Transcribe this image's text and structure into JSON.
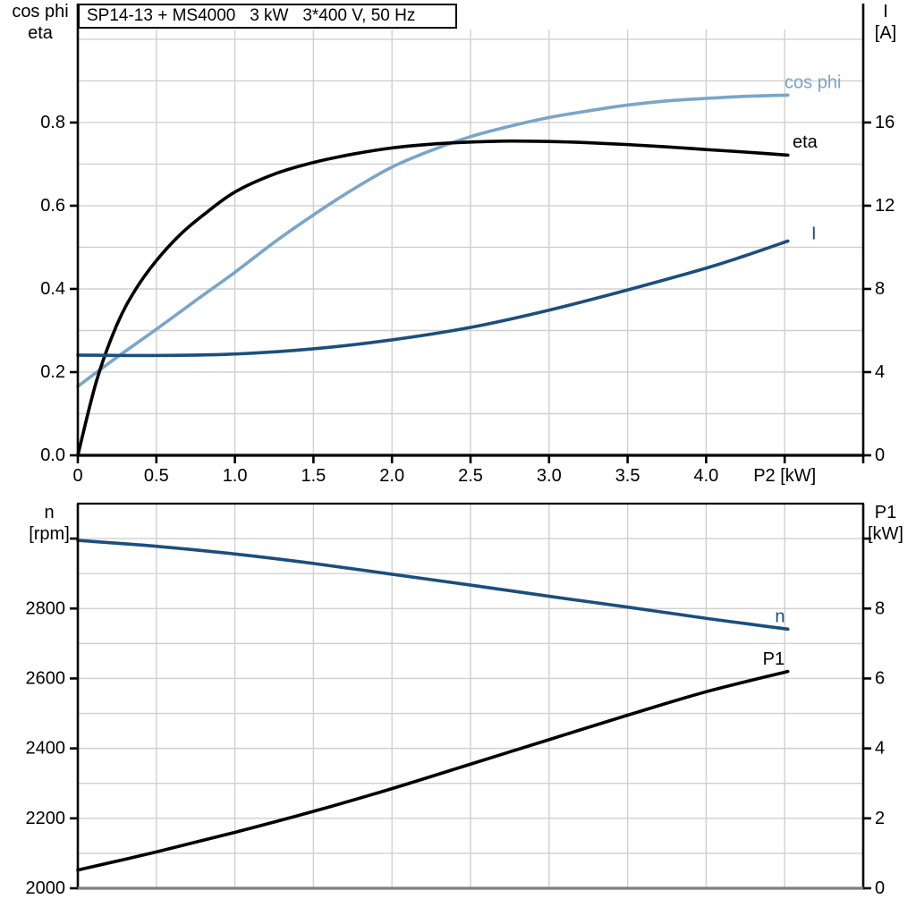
{
  "title_box": {
    "text": "SP14-13 + MS4000   3 kW   3*400 V, 50 Hz"
  },
  "axis_corner_labels": {
    "top_left": [
      "cos phi",
      "eta"
    ],
    "top_right": [
      "I",
      "[A]"
    ],
    "bottom_left": [
      "n",
      "[rpm]"
    ],
    "bottom_right": [
      "P1",
      "[kW]"
    ]
  },
  "colors": {
    "cos_phi": "#7aa5c9",
    "eta": "#000000",
    "current": "#1b4e7e",
    "speed": "#1b4e7e",
    "p1": "#000000",
    "grid": "#d0d0d0",
    "axis": "#000000",
    "bottom_axis_gray": "#7f7f7f",
    "background": "#ffffff"
  },
  "chart_data": [
    {
      "type": "line",
      "title": "SP14-13 + MS4000   3 kW   3*400 V, 50 Hz",
      "xlabel": "P2 [kW]",
      "x_axis": {
        "range": [
          0,
          5.0
        ],
        "label": "P2 [kW]",
        "label_tick_v": 4.5,
        "grid_step": 0.5,
        "ticks": [
          {
            "v": 0,
            "t": "0"
          },
          {
            "v": 0.5,
            "t": "0.5"
          },
          {
            "v": 1,
            "t": "1.0"
          },
          {
            "v": 1.5,
            "t": "1.5"
          },
          {
            "v": 2,
            "t": "2.0"
          },
          {
            "v": 2.5,
            "t": "2.5"
          },
          {
            "v": 3,
            "t": "3.0"
          },
          {
            "v": 3.5,
            "t": "3.5"
          },
          {
            "v": 4,
            "t": "4.0"
          },
          {
            "v": 4.5,
            "t": ""
          },
          {
            "v": 5,
            "t": ""
          }
        ]
      },
      "y_left": {
        "label": "cos phi / eta",
        "range": [
          0,
          1.0236
        ],
        "grid_step": 0.1,
        "ticks": [
          {
            "v": 0,
            "t": "0.0"
          },
          {
            "v": 0.2,
            "t": "0.2"
          },
          {
            "v": 0.4,
            "t": "0.4"
          },
          {
            "v": 0.6,
            "t": "0.6"
          },
          {
            "v": 0.8,
            "t": "0.8"
          }
        ]
      },
      "y_right": {
        "label": "I [A]",
        "range": [
          0,
          20.47
        ],
        "ticks": [
          {
            "v": 0,
            "t": "0"
          },
          {
            "v": 4,
            "t": "4"
          },
          {
            "v": 8,
            "t": "8"
          },
          {
            "v": 12,
            "t": "12"
          },
          {
            "v": 16,
            "t": "16"
          }
        ]
      },
      "series": [
        {
          "name": "cos phi",
          "axis": "left",
          "color": "#7aa5c9",
          "label": {
            "text": "cos phi",
            "v": 4.86,
            "y": 0.896,
            "anchor": "end"
          },
          "points": [
            [
              0,
              0.166
            ],
            [
              0.25,
              0.236
            ],
            [
              0.5,
              0.303
            ],
            [
              0.75,
              0.372
            ],
            [
              1.0,
              0.44
            ],
            [
              1.25,
              0.512
            ],
            [
              1.5,
              0.578
            ],
            [
              1.75,
              0.639
            ],
            [
              2.0,
              0.693
            ],
            [
              2.25,
              0.733
            ],
            [
              2.5,
              0.766
            ],
            [
              2.75,
              0.791
            ],
            [
              3.0,
              0.812
            ],
            [
              3.25,
              0.828
            ],
            [
              3.5,
              0.842
            ],
            [
              3.75,
              0.852
            ],
            [
              4.0,
              0.858
            ],
            [
              4.25,
              0.863
            ],
            [
              4.52,
              0.866
            ]
          ]
        },
        {
          "name": "eta",
          "axis": "left",
          "color": "#000000",
          "label": {
            "text": "eta",
            "v": 4.55,
            "y": 0.753,
            "anchor": "start"
          },
          "points": [
            [
              0,
              0
            ],
            [
              0.12,
              0.18
            ],
            [
              0.25,
              0.315
            ],
            [
              0.37,
              0.4
            ],
            [
              0.5,
              0.468
            ],
            [
              0.65,
              0.53
            ],
            [
              0.8,
              0.578
            ],
            [
              1.0,
              0.633
            ],
            [
              1.25,
              0.676
            ],
            [
              1.5,
              0.704
            ],
            [
              1.75,
              0.724
            ],
            [
              2.0,
              0.739
            ],
            [
              2.25,
              0.748
            ],
            [
              2.5,
              0.753
            ],
            [
              2.75,
              0.7555
            ],
            [
              3.0,
              0.7545
            ],
            [
              3.25,
              0.7515
            ],
            [
              3.5,
              0.747
            ],
            [
              3.75,
              0.7415
            ],
            [
              4.0,
              0.735
            ],
            [
              4.25,
              0.729
            ],
            [
              4.52,
              0.7215
            ]
          ]
        },
        {
          "name": "I",
          "axis": "right",
          "color": "#1b4e7e",
          "label": {
            "text": "I",
            "v": 4.67,
            "y": 10.65,
            "anchor": "start"
          },
          "points": [
            [
              0,
              4.82
            ],
            [
              0.5,
              4.8
            ],
            [
              1.0,
              4.87
            ],
            [
              1.5,
              5.12
            ],
            [
              2.0,
              5.55
            ],
            [
              2.5,
              6.15
            ],
            [
              3.0,
              6.98
            ],
            [
              3.5,
              7.95
            ],
            [
              4.0,
              9.0
            ],
            [
              4.25,
              9.6
            ],
            [
              4.52,
              10.3
            ]
          ]
        }
      ]
    },
    {
      "type": "line",
      "title": "",
      "xlabel": "",
      "x_axis": {
        "range": [
          0,
          5.0
        ],
        "label": "",
        "label_tick_v": null,
        "grid_step": 0.5,
        "ticks": []
      },
      "y_left": {
        "label": "n [rpm]",
        "range": [
          2000,
          3100
        ],
        "grid_step": 100,
        "ticks": [
          {
            "v": 2000,
            "t": "2000"
          },
          {
            "v": 2200,
            "t": "2200"
          },
          {
            "v": 2400,
            "t": "2400"
          },
          {
            "v": 2600,
            "t": "2600"
          },
          {
            "v": 2800,
            "t": "2800"
          },
          {
            "v": 3000,
            "t": ""
          }
        ]
      },
      "y_right": {
        "label": "P1 [kW]",
        "range": [
          0,
          11
        ],
        "ticks": [
          {
            "v": 0,
            "t": "0"
          },
          {
            "v": 2,
            "t": "2"
          },
          {
            "v": 4,
            "t": "4"
          },
          {
            "v": 6,
            "t": "6"
          },
          {
            "v": 8,
            "t": "8"
          },
          {
            "v": 10,
            "t": ""
          }
        ]
      },
      "series": [
        {
          "name": "n",
          "axis": "left",
          "color": "#1b4e7e",
          "label": {
            "text": "n",
            "v": 4.47,
            "y": 2776,
            "anchor": "middle"
          },
          "points": [
            [
              0,
              2995
            ],
            [
              0.5,
              2978
            ],
            [
              1.0,
              2956
            ],
            [
              1.5,
              2929
            ],
            [
              2.0,
              2898
            ],
            [
              2.5,
              2867
            ],
            [
              3.0,
              2835
            ],
            [
              3.5,
              2804
            ],
            [
              4.0,
              2772
            ],
            [
              4.25,
              2757
            ],
            [
              4.52,
              2741
            ]
          ]
        },
        {
          "name": "P1",
          "axis": "right",
          "color": "#000000",
          "label": {
            "text": "P1",
            "v": 4.43,
            "y": 6.55,
            "anchor": "middle"
          },
          "points": [
            [
              0,
              0.52
            ],
            [
              0.5,
              1.04
            ],
            [
              1.0,
              1.6
            ],
            [
              1.5,
              2.2
            ],
            [
              2.0,
              2.85
            ],
            [
              2.5,
              3.55
            ],
            [
              3.0,
              4.25
            ],
            [
              3.5,
              4.95
            ],
            [
              4.0,
              5.62
            ],
            [
              4.52,
              6.2
            ]
          ]
        }
      ]
    }
  ]
}
